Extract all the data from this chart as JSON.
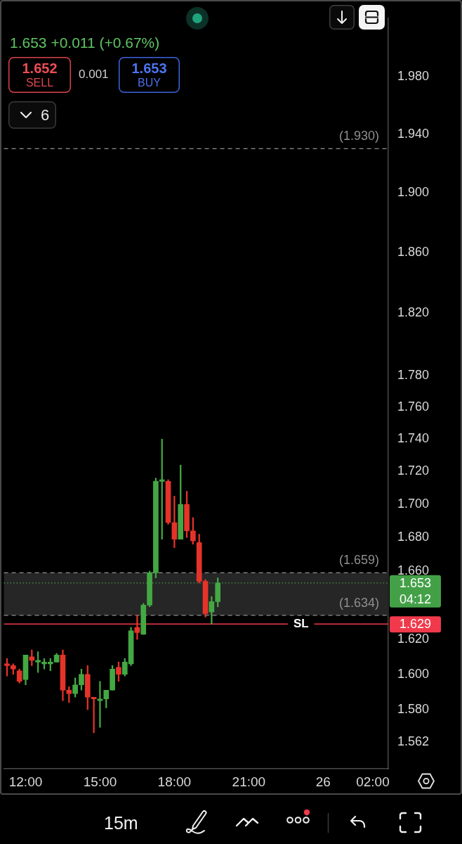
{
  "chart_data": {
    "type": "candlestick",
    "subtitle": "1.653 +0.011 (+0.67%)",
    "annotations": [
      "1.652",
      "SELL",
      "0.001",
      "1.653",
      "BUY",
      "6",
      "15m",
      "04:12",
      "1.629"
    ],
    "categories": [
      null,
      null,
      null,
      "12:00",
      null,
      null,
      null,
      null,
      null,
      null,
      null,
      null,
      null,
      null,
      null,
      "15:00",
      null,
      null,
      null,
      null,
      null,
      null,
      null,
      null,
      null,
      null,
      null,
      "18:00",
      null,
      null,
      null,
      null,
      null,
      null,
      null,
      null,
      null,
      null,
      null,
      "21:00",
      null,
      null,
      null,
      null,
      null,
      null,
      null,
      null,
      null,
      null,
      null,
      "26",
      null,
      null,
      null,
      null,
      null,
      null,
      null,
      "02:00",
      null,
      null
    ],
    "ohlc": [
      [
        1.606,
        1.609,
        1.599,
        1.605
      ],
      [
        1.605,
        1.606,
        1.6,
        1.603
      ],
      [
        1.602,
        1.603,
        1.595,
        1.596
      ],
      [
        1.597,
        1.611,
        1.594,
        1.611
      ],
      [
        1.61,
        1.614,
        1.605,
        1.608
      ],
      [
        1.607,
        1.613,
        1.601,
        1.608
      ],
      [
        1.606,
        1.609,
        1.603,
        1.607
      ],
      [
        1.606,
        1.609,
        1.602,
        1.607
      ],
      [
        1.607,
        1.612,
        1.607,
        1.611
      ],
      [
        1.611,
        1.614,
        1.585,
        1.591
      ],
      [
        1.591,
        1.593,
        1.584,
        1.589
      ],
      [
        1.589,
        1.598,
        1.587,
        1.594
      ],
      [
        1.594,
        1.603,
        1.591,
        1.6
      ],
      [
        1.6,
        1.605,
        1.58,
        1.587
      ],
      [
        1.587,
        1.587,
        1.567,
        1.586
      ],
      [
        1.585,
        1.596,
        1.57,
        1.586
      ],
      [
        1.586,
        1.591,
        1.581,
        1.591
      ],
      [
        1.591,
        1.605,
        1.591,
        1.603
      ],
      [
        1.604,
        1.607,
        1.596,
        1.6
      ],
      [
        1.6,
        1.609,
        1.599,
        1.607
      ],
      [
        1.606,
        1.627,
        1.605,
        1.625
      ],
      [
        1.627,
        1.634,
        1.62,
        1.624
      ],
      [
        1.623,
        1.641,
        1.623,
        1.64
      ],
      [
        1.64,
        1.66,
        1.639,
        1.659
      ],
      [
        1.659,
        1.716,
        1.656,
        1.714
      ],
      [
        1.714,
        1.74,
        1.679,
        1.715
      ],
      [
        1.714,
        1.715,
        1.688,
        1.689
      ],
      [
        1.689,
        1.705,
        1.674,
        1.679
      ],
      [
        1.679,
        1.724,
        1.679,
        1.7
      ],
      [
        1.7,
        1.708,
        1.68,
        1.684
      ],
      [
        1.684,
        1.692,
        1.676,
        1.678
      ],
      [
        1.677,
        1.682,
        1.653,
        1.654
      ],
      [
        1.654,
        1.655,
        1.633,
        1.635
      ],
      [
        1.636,
        1.645,
        1.629,
        1.642
      ],
      [
        1.642,
        1.656,
        1.639,
        1.653
      ],
      null,
      null,
      null,
      null,
      null,
      null,
      null,
      null,
      null,
      null,
      null,
      null,
      null,
      null,
      null,
      null,
      null,
      null,
      null,
      null,
      null,
      null,
      null,
      null,
      null,
      null,
      null
    ],
    "colors": [
      "#e5332a",
      "#e5332a",
      "#e5332a",
      "#43a843",
      "#e5332a",
      "#43a843",
      "#43a843",
      "#43a843",
      "#43a843",
      "#e5332a",
      "#e5332a",
      "#43a843",
      "#43a843",
      "#e5332a",
      "#e5332a",
      "#43a843",
      "#43a843",
      "#43a843",
      "#e5332a",
      "#43a843",
      "#43a843",
      "#e5332a",
      "#43a843",
      "#43a843",
      "#43a843",
      "#43a843",
      "#e5332a",
      "#e5332a",
      "#43a843",
      "#e5332a",
      "#e5332a",
      "#e5332a",
      "#e5332a",
      "#43a843",
      "#43a843",
      null,
      null,
      null,
      null,
      null,
      null,
      null,
      null,
      null,
      null,
      null,
      null,
      null,
      null,
      null,
      null,
      null,
      null,
      null,
      null,
      null,
      null,
      null,
      null,
      null,
      null,
      null
    ],
    "ylim": [
      1.547,
      2.022
    ],
    "yticks": [
      1.562,
      {
        "value": 1.58,
        "label": "1.580"
      },
      {
        "value": 1.6,
        "label": "1.600"
      },
      {
        "value": 1.62,
        "label": "1.620"
      },
      {
        "value": 1.66,
        "label": "1.660"
      },
      {
        "value": 1.68,
        "label": "1.680"
      },
      {
        "value": 1.7,
        "label": "1.700"
      },
      {
        "value": 1.72,
        "label": "1.720"
      },
      {
        "value": 1.74,
        "label": "1.740"
      },
      {
        "value": 1.76,
        "label": "1.760"
      },
      {
        "value": 1.78,
        "label": "1.780"
      },
      {
        "value": 1.82,
        "label": "1.820"
      },
      {
        "value": 1.86,
        "label": "1.860"
      },
      {
        "value": 1.9,
        "label": "1.900"
      },
      {
        "value": 1.94,
        "label": "1.940"
      },
      {
        "value": 1.98,
        "label": "1.980"
      }
    ],
    "log": true,
    "bands": [
      {
        "axis": "y",
        "from": 1.634,
        "to": 1.659,
        "color": "#262626"
      }
    ],
    "ref_lines": [
      {
        "axis": "y",
        "value": 1.93,
        "label": "(1.930)",
        "color": "#8f8f8f",
        "line_style": "dashed"
      },
      {
        "axis": "y",
        "value": 1.659,
        "label": "(1.659)",
        "color": "#8f8f8f",
        "line_style": "dashed"
      },
      {
        "axis": "y",
        "value": 1.634,
        "label": "(1.634)",
        "color": "#8f8f8f",
        "line_style": "dashed"
      },
      {
        "axis": "y",
        "value": 1.653,
        "label": "1.653",
        "color": "#43a047",
        "line_style": "dotted"
      },
      {
        "axis": "y",
        "value": 1.629,
        "label": "SL",
        "color": "#f0394a",
        "line_style": "solid"
      }
    ]
  }
}
